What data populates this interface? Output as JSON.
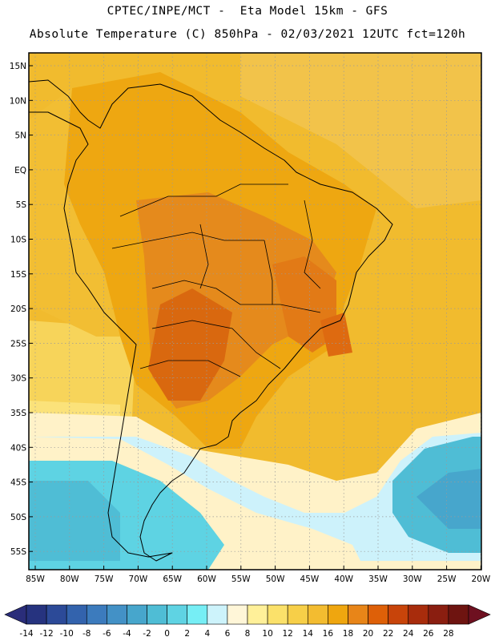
{
  "header": {
    "line1": "CPTEC/INPE/MCT -  Eta Model 15km - GFS",
    "line2": "Absolute Temperature (C) 850hPa - 02/03/2021 12UTC fct=120h"
  },
  "map": {
    "lat_labels": [
      "15N",
      "10N",
      "5N",
      "EQ",
      "5S",
      "10S",
      "15S",
      "20S",
      "25S",
      "30S",
      "35S",
      "40S",
      "45S",
      "50S",
      "55S"
    ],
    "lon_labels": [
      "85W",
      "80W",
      "75W",
      "70W",
      "65W",
      "60W",
      "55W",
      "50W",
      "45W",
      "40W",
      "35W",
      "30W",
      "25W",
      "20W"
    ]
  },
  "colorbar": {
    "labels": [
      "-14",
      "-12",
      "-10",
      "-8",
      "-6",
      "-4",
      "-2",
      "0",
      "2",
      "4",
      "6",
      "8",
      "10",
      "12",
      "14",
      "16",
      "18",
      "20",
      "22",
      "24",
      "26",
      "28"
    ],
    "colors": [
      "#26337f",
      "#2c4a98",
      "#3363ad",
      "#3c7bbd",
      "#4391c6",
      "#47a6cc",
      "#4fbdd5",
      "#5fd3e3",
      "#76eef5",
      "#cdf3fb",
      "#fff6d8",
      "#fff099",
      "#fbe16a",
      "#f7cf48",
      "#f3bc30",
      "#efa60f",
      "#e88518",
      "#de6008",
      "#c8440a",
      "#a82c0c",
      "#8a1e10",
      "#6e1410"
    ],
    "low_color": "#2a2d7a",
    "high_color": "#6e1020"
  }
}
